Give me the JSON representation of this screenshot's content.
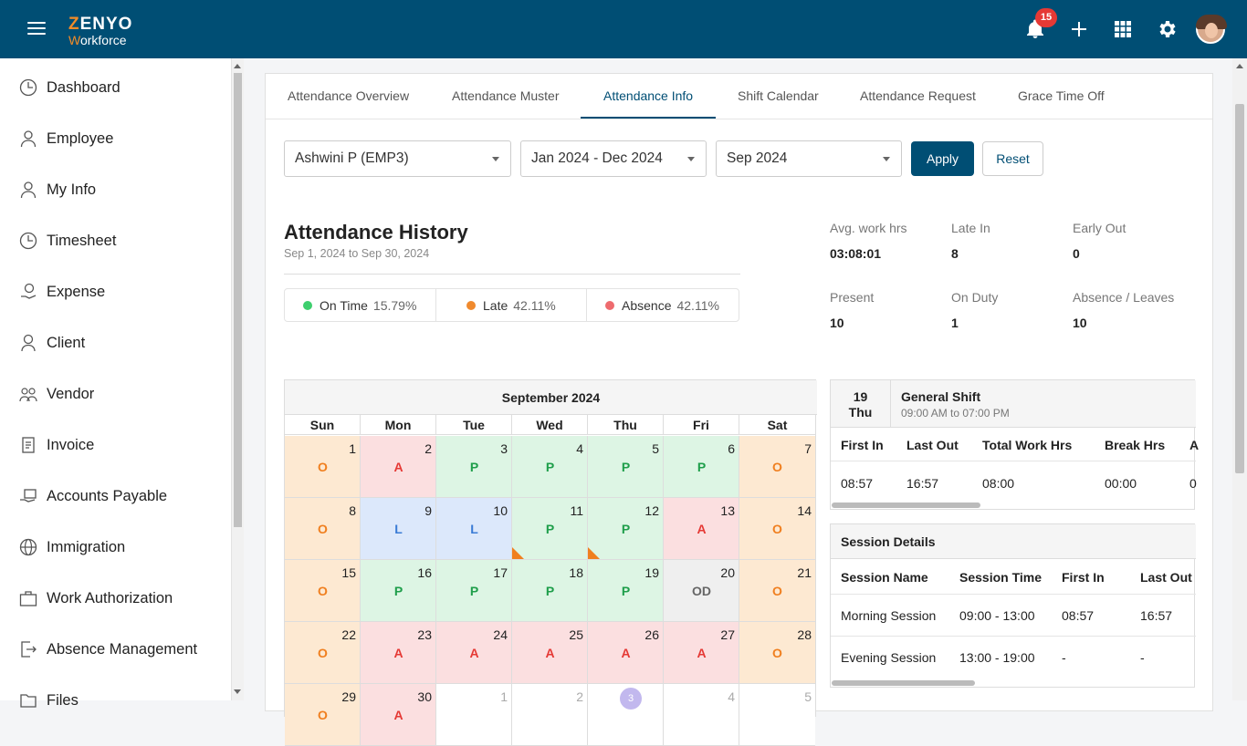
{
  "app": {
    "logo_line1": "ZENYO",
    "logo_line2": "Workforce",
    "notification_count": "15"
  },
  "sidebar": {
    "items": [
      {
        "label": "Dashboard",
        "icon": "clock-icon"
      },
      {
        "label": "Employee",
        "icon": "user-icon"
      },
      {
        "label": "My Info",
        "icon": "user-icon"
      },
      {
        "label": "Timesheet",
        "icon": "clock-icon"
      },
      {
        "label": "Expense",
        "icon": "money-hand-icon"
      },
      {
        "label": "Client",
        "icon": "person-icon"
      },
      {
        "label": "Vendor",
        "icon": "group-icon"
      },
      {
        "label": "Invoice",
        "icon": "document-icon"
      },
      {
        "label": "Accounts Payable",
        "icon": "payment-icon"
      },
      {
        "label": "Immigration",
        "icon": "globe-icon"
      },
      {
        "label": "Work Authorization",
        "icon": "briefcase-icon"
      },
      {
        "label": "Absence Management",
        "icon": "exit-icon"
      },
      {
        "label": "Files",
        "icon": "folder-icon"
      }
    ]
  },
  "tabs": [
    "Attendance Overview",
    "Attendance Muster",
    "Attendance Info",
    "Shift Calendar",
    "Attendance Request",
    "Grace Time Off"
  ],
  "active_tab": "Attendance Info",
  "filters": {
    "employee": "Ashwini P (EMP3)",
    "period": "Jan 2024 - Dec 2024",
    "month": "Sep 2024",
    "apply_label": "Apply",
    "reset_label": "Reset"
  },
  "history": {
    "title": "Attendance History",
    "range": "Sep 1, 2024 to Sep 30, 2024",
    "legend": [
      {
        "label": "On Time",
        "pct": "15.79%",
        "color": "#3ecf6e"
      },
      {
        "label": "Late",
        "pct": "42.11%",
        "color": "#f08a2e"
      },
      {
        "label": "Absence",
        "pct": "42.11%",
        "color": "#ee6b6e"
      }
    ]
  },
  "stats": [
    {
      "label": "Avg. work hrs",
      "value": "03:08:01"
    },
    {
      "label": "Late In",
      "value": "8"
    },
    {
      "label": "Early Out",
      "value": "0"
    },
    {
      "label": "Present",
      "value": "10"
    },
    {
      "label": "On Duty",
      "value": "1"
    },
    {
      "label": "Absence / Leaves",
      "value": "10"
    }
  ],
  "calendar": {
    "title": "September 2024",
    "days": [
      "Sun",
      "Mon",
      "Tue",
      "Wed",
      "Thu",
      "Fri",
      "Sat"
    ],
    "weeks": [
      [
        {
          "d": "1",
          "s": "O"
        },
        {
          "d": "2",
          "s": "A"
        },
        {
          "d": "3",
          "s": "P"
        },
        {
          "d": "4",
          "s": "P"
        },
        {
          "d": "5",
          "s": "P"
        },
        {
          "d": "6",
          "s": "P"
        },
        {
          "d": "7",
          "s": "O"
        }
      ],
      [
        {
          "d": "8",
          "s": "O"
        },
        {
          "d": "9",
          "s": "L"
        },
        {
          "d": "10",
          "s": "L"
        },
        {
          "d": "11",
          "s": "P",
          "late": true
        },
        {
          "d": "12",
          "s": "P",
          "late": true
        },
        {
          "d": "13",
          "s": "A"
        },
        {
          "d": "14",
          "s": "O"
        }
      ],
      [
        {
          "d": "15",
          "s": "O"
        },
        {
          "d": "16",
          "s": "P"
        },
        {
          "d": "17",
          "s": "P"
        },
        {
          "d": "18",
          "s": "P"
        },
        {
          "d": "19",
          "s": "P"
        },
        {
          "d": "20",
          "s": "OD"
        },
        {
          "d": "21",
          "s": "O"
        }
      ],
      [
        {
          "d": "22",
          "s": "O"
        },
        {
          "d": "23",
          "s": "A"
        },
        {
          "d": "24",
          "s": "A"
        },
        {
          "d": "25",
          "s": "A"
        },
        {
          "d": "26",
          "s": "A"
        },
        {
          "d": "27",
          "s": "A"
        },
        {
          "d": "28",
          "s": "O"
        }
      ],
      [
        {
          "d": "29",
          "s": "O"
        },
        {
          "d": "30",
          "s": "A"
        },
        {
          "d": "1",
          "s": "",
          "dim": true
        },
        {
          "d": "2",
          "s": "",
          "dim": true
        },
        {
          "d": "3",
          "s": "",
          "today": true
        },
        {
          "d": "4",
          "s": "",
          "dim": true
        },
        {
          "d": "5",
          "s": "",
          "dim": true
        }
      ]
    ]
  },
  "shift": {
    "day_num": "19",
    "day_name": "Thu",
    "name": "General Shift",
    "time": "09:00 AM to 07:00 PM",
    "headers": [
      "First In",
      "Last Out",
      "Total Work Hrs",
      "Break Hrs",
      "A"
    ],
    "values": [
      "08:57",
      "16:57",
      "08:00",
      "00:00",
      "0"
    ]
  },
  "session": {
    "title": "Session Details",
    "headers": [
      "Session Name",
      "Session Time",
      "First In",
      "Last Out"
    ],
    "rows": [
      [
        "Morning Session",
        "09:00 - 13:00",
        "08:57",
        "16:57"
      ],
      [
        "Evening Session",
        "13:00 - 19:00",
        "-",
        "-"
      ]
    ]
  }
}
